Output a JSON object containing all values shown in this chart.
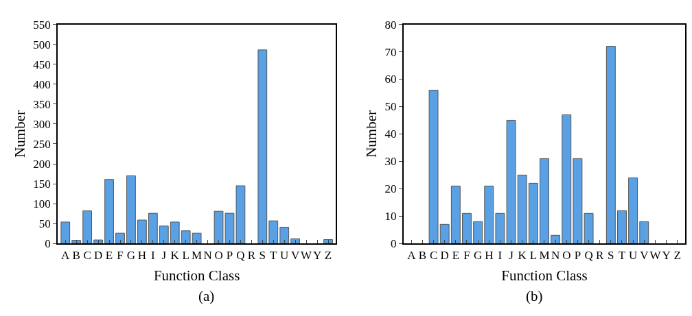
{
  "chart_data": [
    {
      "type": "bar",
      "xlabel": "Function Class",
      "ylabel": "Number",
      "annotations": [
        "(a)"
      ],
      "categories": [
        "A",
        "B",
        "C",
        "D",
        "E",
        "F",
        "G",
        "H",
        "I",
        "J",
        "K",
        "L",
        "M",
        "N",
        "O",
        "P",
        "Q",
        "R",
        "S",
        "T",
        "U",
        "V",
        "W",
        "Y",
        "Z"
      ],
      "values": [
        54,
        8,
        82,
        9,
        161,
        26,
        170,
        59,
        76,
        44,
        54,
        32,
        26,
        0,
        81,
        76,
        145,
        0,
        486,
        57,
        41,
        12,
        0,
        0,
        10
      ],
      "color": "#5aa0e4",
      "ylim": [
        0,
        550
      ],
      "yticks": [
        0,
        50,
        100,
        150,
        200,
        250,
        300,
        350,
        400,
        450,
        500,
        550
      ]
    },
    {
      "type": "bar",
      "xlabel": "Function Class",
      "ylabel": "Number",
      "annotations": [
        "(b)"
      ],
      "categories": [
        "A",
        "B",
        "C",
        "D",
        "E",
        "F",
        "G",
        "H",
        "I",
        "J",
        "K",
        "L",
        "M",
        "N",
        "O",
        "P",
        "Q",
        "R",
        "S",
        "T",
        "U",
        "V",
        "W",
        "Y",
        "Z"
      ],
      "values": [
        0,
        0,
        56,
        7,
        21,
        11,
        8,
        21,
        11,
        45,
        25,
        22,
        31,
        3,
        47,
        31,
        11,
        0,
        72,
        12,
        24,
        8,
        0,
        0,
        0
      ],
      "color": "#5aa0e4",
      "ylim": [
        0,
        80
      ],
      "yticks": [
        0,
        10,
        20,
        30,
        40,
        50,
        60,
        70,
        80
      ]
    }
  ]
}
